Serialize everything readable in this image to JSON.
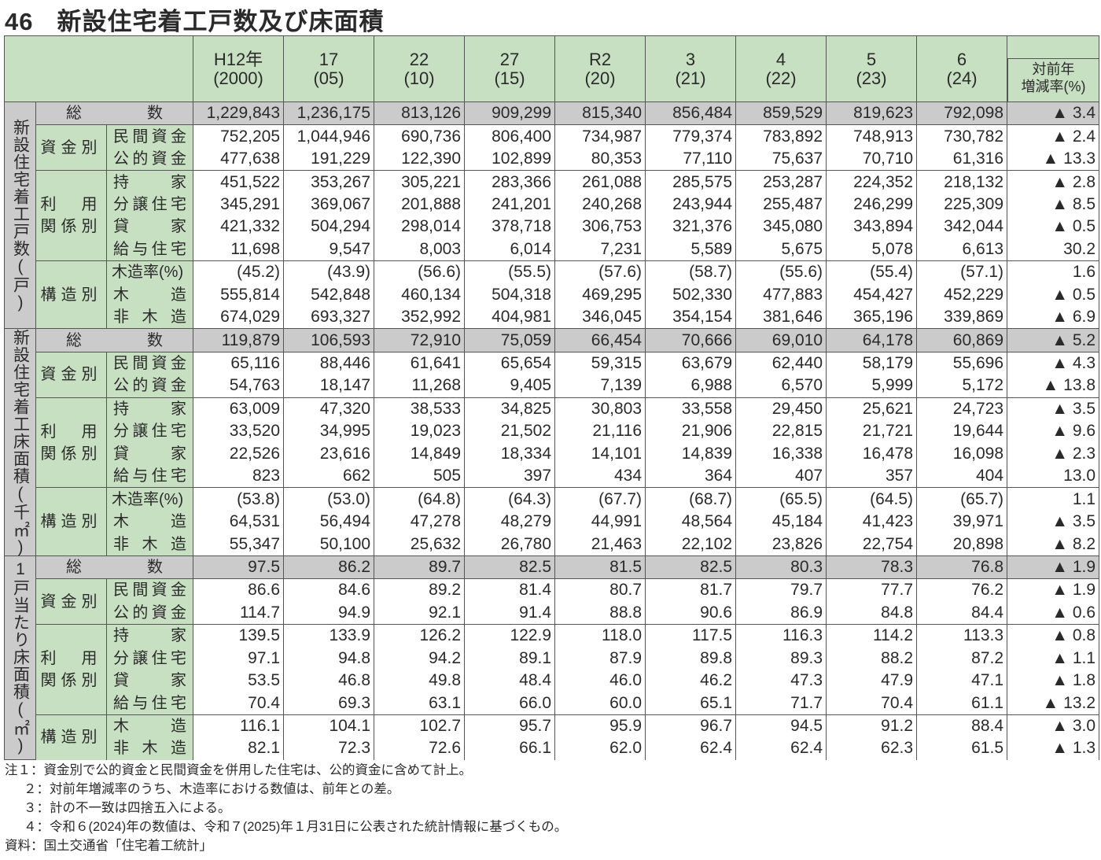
{
  "title": {
    "number": "46",
    "text": "新設住宅着工戸数及び床面積"
  },
  "header": {
    "years": [
      [
        "H12年",
        "(2000)"
      ],
      [
        "17",
        "(05)"
      ],
      [
        "22",
        "(10)"
      ],
      [
        "27",
        "(15)"
      ],
      [
        "R2",
        "(20)"
      ],
      [
        "3",
        "(21)"
      ],
      [
        "4",
        "(22)"
      ],
      [
        "5",
        "(23)"
      ],
      [
        "6",
        "(24)"
      ]
    ],
    "change": [
      "対前年",
      "増減率(%)"
    ]
  },
  "colors": {
    "header_bg": "#c8e0c2",
    "total_bg": "#cbcbcb"
  },
  "sections": [
    {
      "label": "新設住宅着工戸数(戸)",
      "total": {
        "label": "総数",
        "values": [
          "1,229,843",
          "1,236,175",
          "813,126",
          "909,299",
          "815,340",
          "856,484",
          "859,529",
          "819,623",
          "792,098"
        ],
        "change": "▲ 3.4"
      },
      "groups": [
        {
          "label": [
            "資金別"
          ],
          "rows": [
            {
              "label": "民間資金",
              "values": [
                "752,205",
                "1,044,946",
                "690,736",
                "806,400",
                "734,987",
                "779,374",
                "783,892",
                "748,913",
                "730,782"
              ],
              "change": "▲ 2.4"
            },
            {
              "label": "公的資金",
              "values": [
                "477,638",
                "191,229",
                "122,390",
                "102,899",
                "80,353",
                "77,110",
                "75,637",
                "70,710",
                "61,316"
              ],
              "change": "▲ 13.3"
            }
          ]
        },
        {
          "label": [
            "利　用",
            "関係別"
          ],
          "rows": [
            {
              "label": "持家",
              "values": [
                "451,522",
                "353,267",
                "305,221",
                "283,366",
                "261,088",
                "285,575",
                "253,287",
                "224,352",
                "218,132"
              ],
              "change": "▲ 2.8"
            },
            {
              "label": "分譲住宅",
              "values": [
                "345,291",
                "369,067",
                "201,888",
                "241,201",
                "240,268",
                "243,944",
                "255,487",
                "246,299",
                "225,309"
              ],
              "change": "▲ 8.5"
            },
            {
              "label": "貸家",
              "values": [
                "421,332",
                "504,294",
                "298,014",
                "378,718",
                "306,753",
                "321,376",
                "345,080",
                "343,894",
                "342,044"
              ],
              "change": "▲ 0.5"
            },
            {
              "label": "給与住宅",
              "values": [
                "11,698",
                "9,547",
                "8,003",
                "6,014",
                "7,231",
                "5,589",
                "5,675",
                "5,078",
                "6,613"
              ],
              "change": "30.2"
            }
          ]
        },
        {
          "label": [
            "構造別"
          ],
          "rows": [
            {
              "label": "木造率(%)",
              "values": [
                "(45.2)",
                "(43.9)",
                "(56.6)",
                "(55.5)",
                "(57.6)",
                "(58.7)",
                "(55.6)",
                "(55.4)",
                "(57.1)"
              ],
              "change": "1.6"
            },
            {
              "label": "木造",
              "values": [
                "555,814",
                "542,848",
                "460,134",
                "504,318",
                "469,295",
                "502,330",
                "477,883",
                "454,427",
                "452,229"
              ],
              "change": "▲ 0.5"
            },
            {
              "label": "非木造",
              "values": [
                "674,029",
                "693,327",
                "352,992",
                "404,981",
                "346,045",
                "354,154",
                "381,646",
                "365,196",
                "339,869"
              ],
              "change": "▲ 6.9"
            }
          ]
        }
      ]
    },
    {
      "label": "新設住宅着工床面積(千㎡)",
      "total": {
        "label": "総数",
        "values": [
          "119,879",
          "106,593",
          "72,910",
          "75,059",
          "66,454",
          "70,666",
          "69,010",
          "64,178",
          "60,869"
        ],
        "change": "▲ 5.2"
      },
      "groups": [
        {
          "label": [
            "資金別"
          ],
          "rows": [
            {
              "label": "民間資金",
              "values": [
                "65,116",
                "88,446",
                "61,641",
                "65,654",
                "59,315",
                "63,679",
                "62,440",
                "58,179",
                "55,696"
              ],
              "change": "▲ 4.3"
            },
            {
              "label": "公的資金",
              "values": [
                "54,763",
                "18,147",
                "11,268",
                "9,405",
                "7,139",
                "6,988",
                "6,570",
                "5,999",
                "5,172"
              ],
              "change": "▲ 13.8"
            }
          ]
        },
        {
          "label": [
            "利　用",
            "関係別"
          ],
          "rows": [
            {
              "label": "持家",
              "values": [
                "63,009",
                "47,320",
                "38,533",
                "34,825",
                "30,803",
                "33,558",
                "29,450",
                "25,621",
                "24,723"
              ],
              "change": "▲ 3.5"
            },
            {
              "label": "分譲住宅",
              "values": [
                "33,520",
                "34,995",
                "19,023",
                "21,502",
                "21,116",
                "21,906",
                "22,815",
                "21,721",
                "19,644"
              ],
              "change": "▲ 9.6"
            },
            {
              "label": "貸家",
              "values": [
                "22,526",
                "23,616",
                "14,849",
                "18,334",
                "14,101",
                "14,839",
                "16,338",
                "16,478",
                "16,098"
              ],
              "change": "▲ 2.3"
            },
            {
              "label": "給与住宅",
              "values": [
                "823",
                "662",
                "505",
                "397",
                "434",
                "364",
                "407",
                "357",
                "404"
              ],
              "change": "13.0"
            }
          ]
        },
        {
          "label": [
            "構造別"
          ],
          "rows": [
            {
              "label": "木造率(%)",
              "values": [
                "(53.8)",
                "(53.0)",
                "(64.8)",
                "(64.3)",
                "(67.7)",
                "(68.7)",
                "(65.5)",
                "(64.5)",
                "(65.7)"
              ],
              "change": "1.1"
            },
            {
              "label": "木造",
              "values": [
                "64,531",
                "56,494",
                "47,278",
                "48,279",
                "44,991",
                "48,564",
                "45,184",
                "41,423",
                "39,971"
              ],
              "change": "▲ 3.5"
            },
            {
              "label": "非木造",
              "values": [
                "55,347",
                "50,100",
                "25,632",
                "26,780",
                "21,463",
                "22,102",
                "23,826",
                "22,754",
                "20,898"
              ],
              "change": "▲ 8.2"
            }
          ]
        }
      ]
    },
    {
      "label": "1戸当たり床面積(㎡)",
      "total": {
        "label": "総数",
        "values": [
          "97.5",
          "86.2",
          "89.7",
          "82.5",
          "81.5",
          "82.5",
          "80.3",
          "78.3",
          "76.8"
        ],
        "change": "▲ 1.9"
      },
      "groups": [
        {
          "label": [
            "資金別"
          ],
          "rows": [
            {
              "label": "民間資金",
              "values": [
                "86.6",
                "84.6",
                "89.2",
                "81.4",
                "80.7",
                "81.7",
                "79.7",
                "77.7",
                "76.2"
              ],
              "change": "▲ 1.9"
            },
            {
              "label": "公的資金",
              "values": [
                "114.7",
                "94.9",
                "92.1",
                "91.4",
                "88.8",
                "90.6",
                "86.9",
                "84.8",
                "84.4"
              ],
              "change": "▲ 0.6"
            }
          ]
        },
        {
          "label": [
            "利　用",
            "関係別"
          ],
          "rows": [
            {
              "label": "持家",
              "values": [
                "139.5",
                "133.9",
                "126.2",
                "122.9",
                "118.0",
                "117.5",
                "116.3",
                "114.2",
                "113.3"
              ],
              "change": "▲ 0.8"
            },
            {
              "label": "分譲住宅",
              "values": [
                "97.1",
                "94.8",
                "94.2",
                "89.1",
                "87.9",
                "89.8",
                "89.3",
                "88.2",
                "87.2"
              ],
              "change": "▲ 1.1"
            },
            {
              "label": "貸家",
              "values": [
                "53.5",
                "46.8",
                "49.8",
                "48.4",
                "46.0",
                "46.2",
                "47.3",
                "47.9",
                "47.1"
              ],
              "change": "▲ 1.8"
            },
            {
              "label": "給与住宅",
              "values": [
                "70.4",
                "69.3",
                "63.1",
                "66.0",
                "60.0",
                "65.1",
                "71.7",
                "70.4",
                "61.1"
              ],
              "change": "▲ 13.2"
            }
          ]
        },
        {
          "label": [
            "構造別"
          ],
          "rows": [
            {
              "label": "木造",
              "values": [
                "116.1",
                "104.1",
                "102.7",
                "95.7",
                "95.9",
                "96.7",
                "94.5",
                "91.2",
                "88.4"
              ],
              "change": "▲ 3.0"
            },
            {
              "label": "非木造",
              "values": [
                "82.1",
                "72.3",
                "72.6",
                "66.1",
                "62.0",
                "62.4",
                "62.4",
                "62.3",
                "61.5"
              ],
              "change": "▲ 1.3"
            }
          ]
        }
      ]
    }
  ],
  "notes": [
    "注１：資金別で公的資金と民間資金を併用した住宅は、公的資金に含めて計上。",
    "２：対前年増減率のうち、木造率における数値は、前年との差。",
    "３：計の不一致は四捨五入による。",
    "４：令和６(2024)年の数値は、令和７(2025)年１月31日に公表された統計情報に基づくもの。",
    "資料：国土交通省「住宅着工統計」"
  ]
}
